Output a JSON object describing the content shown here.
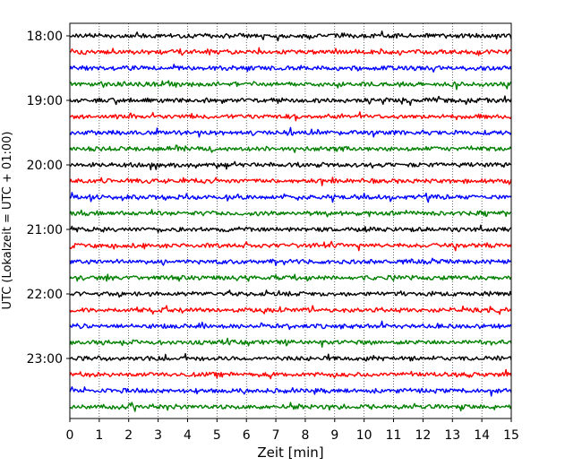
{
  "chart_data": {
    "type": "line",
    "subtype": "helicorder",
    "title": "",
    "xlabel": "Zeit  [min]",
    "ylabel": "UTC (Lokalzeit = UTC + 01:00)",
    "xlim": [
      0,
      15
    ],
    "x_ticks": [
      0,
      1,
      2,
      3,
      4,
      5,
      6,
      7,
      8,
      9,
      10,
      11,
      12,
      13,
      14,
      15
    ],
    "x_tick_labels": [
      "0",
      "1",
      "2",
      "3",
      "4",
      "5",
      "6",
      "7",
      "8",
      "9",
      "10",
      "11",
      "12",
      "13",
      "14",
      "15"
    ],
    "y_tick_labels": [
      "18:00",
      "19:00",
      "20:00",
      "21:00",
      "22:00",
      "23:00"
    ],
    "trace_minutes": 15,
    "traces_per_hour": 4,
    "trace_count": 24,
    "trace_colors": [
      "#000000",
      "#ff0000",
      "#0000ff",
      "#008000"
    ],
    "grid": "vertical dotted lines at each minute",
    "legend": "none"
  }
}
